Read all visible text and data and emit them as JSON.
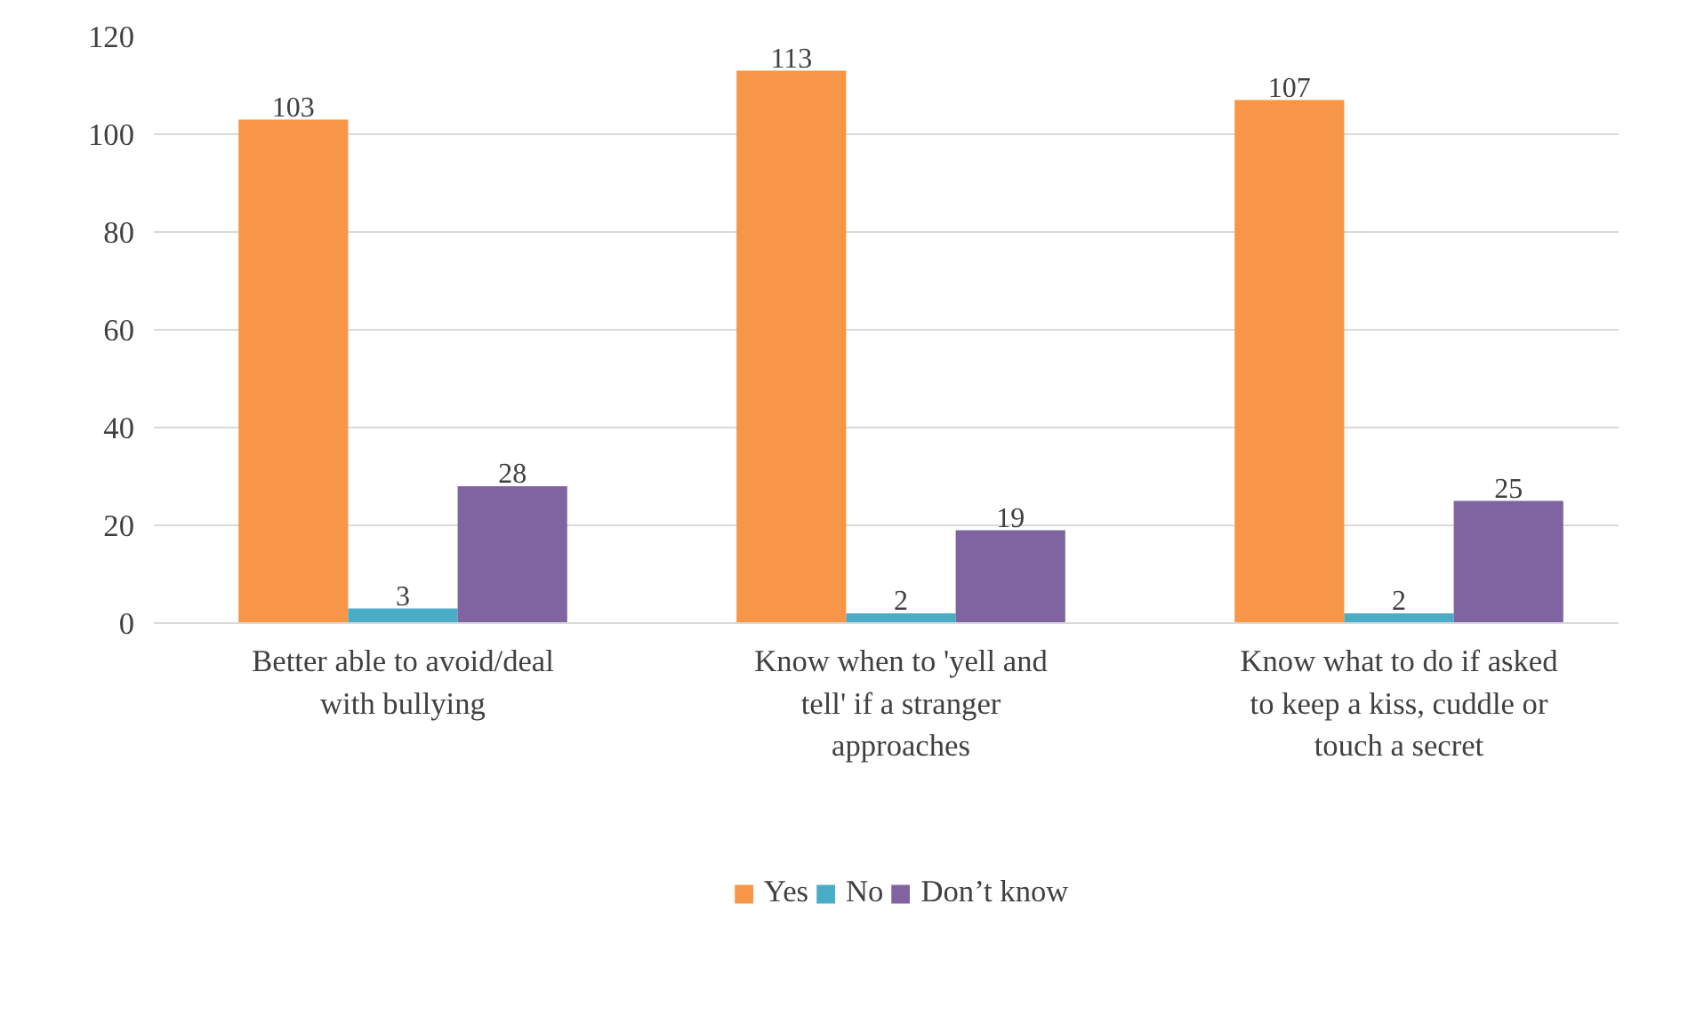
{
  "chart_data": {
    "type": "bar",
    "categories": [
      "Better able to avoid/deal with bullying",
      "Know when to 'yell and tell' if a stranger approaches",
      "Know what to do if asked to keep a kiss, cuddle or touch a secret"
    ],
    "series": [
      {
        "name": "Yes",
        "color": "#f79646",
        "values": [
          103,
          113,
          107
        ]
      },
      {
        "name": "No",
        "color": "#4bacc6",
        "values": [
          3,
          2,
          2
        ]
      },
      {
        "name": "Don’t know",
        "color": "#8064a2",
        "values": [
          28,
          19,
          25
        ]
      }
    ],
    "ylim": [
      0,
      120
    ],
    "yticks": [
      0,
      20,
      40,
      60,
      80,
      100,
      120
    ],
    "grid": "y",
    "legend": "bottom",
    "data_labels": true
  }
}
